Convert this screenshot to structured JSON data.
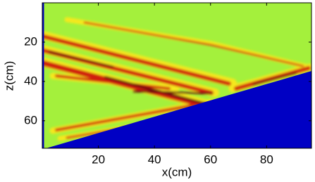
{
  "chart_data": {
    "type": "heatmap",
    "xlabel": "x(cm)",
    "ylabel": "z(cm)",
    "xlim": [
      0,
      96
    ],
    "xticks": [
      20,
      40,
      60,
      80
    ],
    "ylim": [
      0,
      74
    ],
    "yticks": [
      20,
      40,
      60
    ],
    "y_reversed": true
  }
}
